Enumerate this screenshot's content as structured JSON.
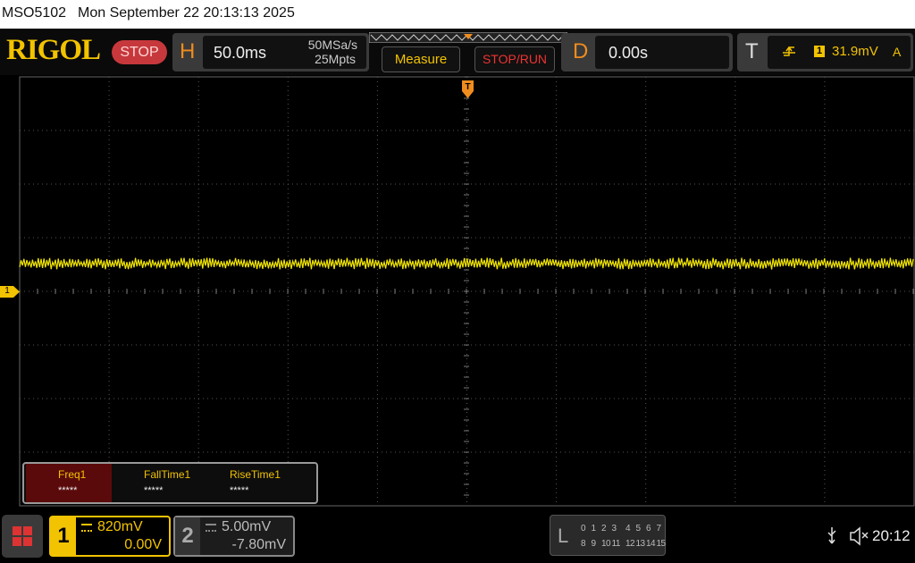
{
  "status_bar": {
    "model": "MSO5102",
    "datetime": "Mon September 22 20:13:13 2025"
  },
  "header": {
    "logo": "RIGOL",
    "run_state": "STOP",
    "horizontal": {
      "label": "H",
      "timebase": "50.0ms",
      "sample_rate": "50MSa/s",
      "memory_depth": "25Mpts"
    },
    "buttons": [
      "Measure",
      "STOP/RUN"
    ],
    "delay": {
      "label": "D",
      "value": "0.00s"
    },
    "trigger": {
      "label": "T",
      "source": "1",
      "level": "31.9mV",
      "mode": "A"
    }
  },
  "screen": {
    "trigger_marker": "T",
    "channel_marker": "1"
  },
  "measurements": [
    {
      "name": "Freq1",
      "value": "*****"
    },
    {
      "name": "FallTime1",
      "value": "*****"
    },
    {
      "name": "RiseTime1",
      "value": "*****"
    }
  ],
  "channels": [
    {
      "number": "1",
      "scale": "820mV",
      "offset": "0.00V"
    },
    {
      "number": "2",
      "scale": "5.00mV",
      "offset": "-7.80mV"
    }
  ],
  "logic": {
    "label": "L",
    "row1": [
      "0",
      "1",
      "2",
      "3",
      "4",
      "5",
      "6",
      "7"
    ],
    "row2": [
      "8",
      "9",
      "10",
      "11",
      "12",
      "13",
      "14",
      "15"
    ]
  },
  "clock": "20:12"
}
